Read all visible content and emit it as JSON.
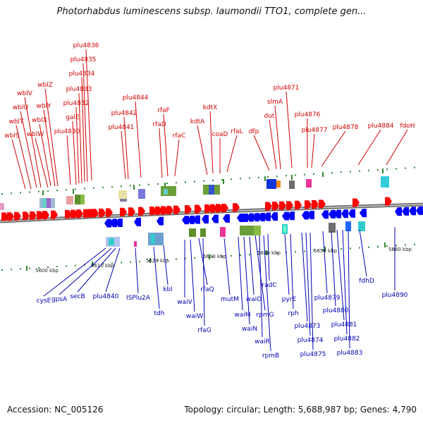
{
  "title": "Photorhabdus luminescens subsp. laumondii TTO1, complete gen...",
  "accession": "Accession: NC_005126",
  "summary": "Topology: circular; Length: 5,688,987 bp; Genes: 4,790",
  "scale_labels": [
    "5600 kbp",
    "5610 kbp",
    "5620 kbp",
    "5630 kbp",
    "5640 kbp",
    "5650 kbp",
    "5660 kbp"
  ],
  "top_genes": [
    "wblS",
    "wblT",
    "wblU",
    "wblV",
    "wblW",
    "wblX",
    "wblY",
    "wblZ",
    "plu4830",
    "galE",
    "plu4832",
    "plu4833",
    "plu4834",
    "plu4835",
    "plu4836",
    "plu4841",
    "plu4842",
    "plu4844",
    "rfaD",
    "rfaF",
    "rfaC",
    "kdtA",
    "kdtX",
    "coaD",
    "rfaL",
    "dfp",
    "dut",
    "slmA",
    "plu4871",
    "plu4876",
    "plu4877",
    "plu4878",
    "plu4884",
    "fdoH"
  ],
  "bottom_genes": [
    "cysE",
    "gpsA",
    "secB",
    "plu4840",
    "ISPlu2A",
    "tdh",
    "kbl",
    "waiV",
    "waiW",
    "rfaQ",
    "rfaG",
    "mutM",
    "waiM",
    "waiN",
    "waiO",
    "rpmG",
    "waiR",
    "rpmB",
    "radC",
    "pyrE",
    "rph",
    "plu4873",
    "plu4874",
    "plu4875",
    "plu4879",
    "plu4880",
    "plu4881",
    "plu4882",
    "plu4883",
    "fdhD",
    "plu4890"
  ],
  "colors": {
    "forward": "#ff0000",
    "reverse": "#0000ff",
    "forward_label": "#d20000",
    "reverse_label": "#0000b4",
    "tick": "#2e8b2e",
    "backbone": "#808080"
  }
}
